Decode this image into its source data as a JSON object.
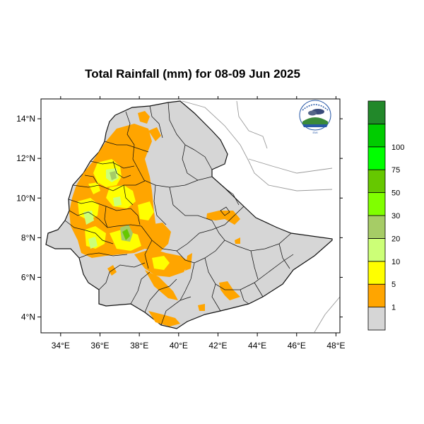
{
  "title": "Total Rainfall (mm) for 08-09 Jun 2025",
  "map": {
    "lon_range": [
      33,
      48.2
    ],
    "lat_range": [
      3.2,
      15
    ],
    "x_ticks": [
      {
        "value": 34,
        "label": "34°E"
      },
      {
        "value": 36,
        "label": "36°E"
      },
      {
        "value": 38,
        "label": "38°E"
      },
      {
        "value": 40,
        "label": "40°E"
      },
      {
        "value": 42,
        "label": "42°E"
      },
      {
        "value": 44,
        "label": "44°E"
      },
      {
        "value": 46,
        "label": "46°E"
      },
      {
        "value": 48,
        "label": "48°E"
      }
    ],
    "y_ticks": [
      {
        "value": 4,
        "label": "4°N"
      },
      {
        "value": 6,
        "label": "6°N"
      },
      {
        "value": 8,
        "label": "8°N"
      },
      {
        "value": 10,
        "label": "10°N"
      },
      {
        "value": 12,
        "label": "12°N"
      },
      {
        "value": 14,
        "label": "14°N"
      }
    ],
    "land_color": "#d6d6d6",
    "border_color": "#222222"
  },
  "legend": {
    "colors": [
      "#d6d6d6",
      "#ffa500",
      "#ffff00",
      "#ccff77",
      "#a6cc66",
      "#80ff00",
      "#66c800",
      "#00ff00",
      "#00cc00",
      "#22882a"
    ],
    "labels": [
      "1",
      "5",
      "10",
      "20",
      "30",
      "50",
      "75",
      "100"
    ]
  },
  "logo": {
    "name": "ethiopian-meteorology-institute-logo",
    "text": "EMI"
  }
}
